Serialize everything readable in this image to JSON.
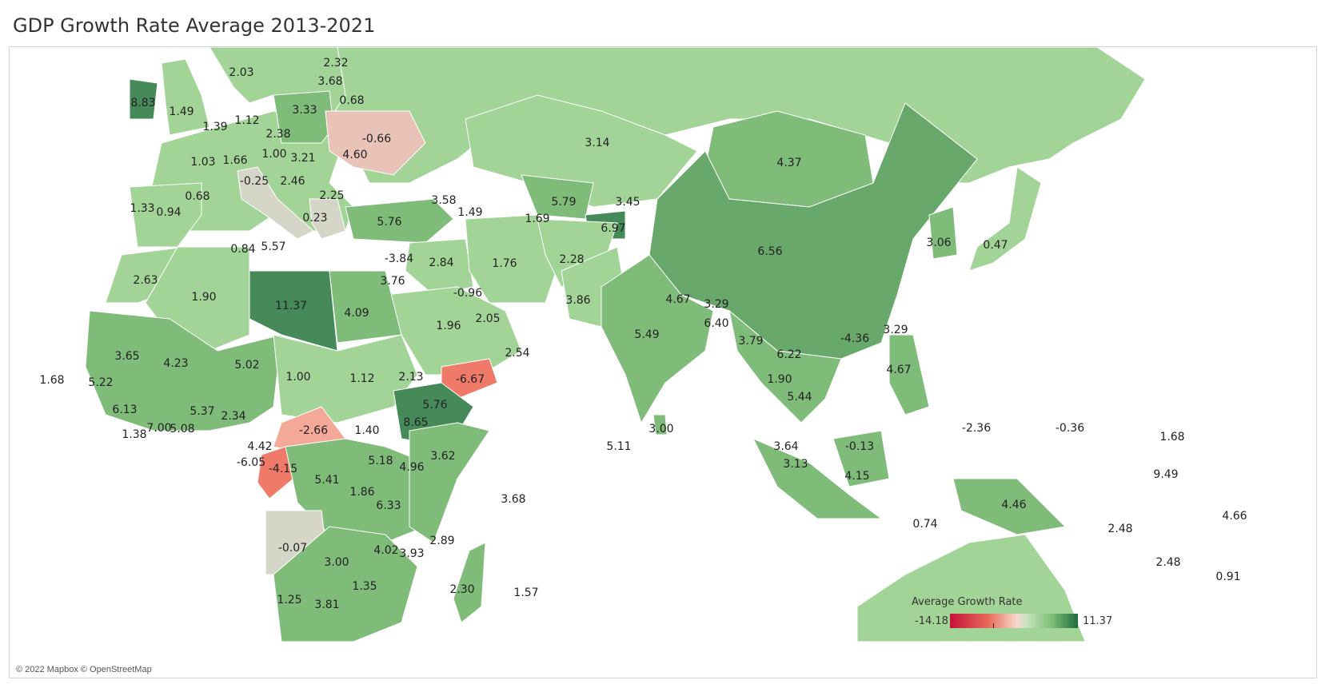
{
  "title": "GDP Growth Rate Average 2013-2021",
  "attribution": "© 2022 Mapbox © OpenStreetMap",
  "legend": {
    "title": "Average Growth Rate",
    "min": "-14.18",
    "max": "11.37"
  },
  "colors": {
    "strong_positive": "#478a5a",
    "positive": "#7fbb79",
    "mild_positive": "#a3d497",
    "neutral": "#d6d6c8",
    "mild_negative": "#eac3b8",
    "negative": "#f07a6a",
    "water": "#ffffff"
  },
  "map_labels": {
    "ireland": "8.83",
    "uk": "1.49",
    "norway": "2.03",
    "finland": "2.32",
    "baltic": "3.68",
    "belarus": "0.68",
    "denmark": "1.12",
    "netherlands": "1.39",
    "poland": "3.33",
    "germany": "2.38",
    "ukraine": "-0.66",
    "france": "1.03",
    "switzerland": "1.66",
    "czechia": "1.00",
    "slovakia": "3.21",
    "romania": "4.60",
    "hungary": "2.46",
    "italy": "-0.25",
    "bulgaria": "2.25",
    "spain_n": "0.68",
    "portugal": "1.33",
    "spain": "0.94",
    "greece": "0.23",
    "malta": "5.57",
    "tunisia": "0.84",
    "turkey": "5.76",
    "georgia": "3.58",
    "armenia": "1.49",
    "kazakhstan": "3.14",
    "uzbekistan": "5.79",
    "kyrgyzstan": "3.45",
    "turkmenistan": "1.69",
    "tajikistan": "6.97",
    "mongolia": "4.37",
    "china": "6.56",
    "korea": "3.06",
    "japan": "0.47",
    "lebanon": "-3.84",
    "iraq": "2.84",
    "iran": "1.76",
    "afghanistan": "2.28",
    "pakistan": "3.86",
    "morocco": "2.63",
    "algeria": "1.90",
    "libya": "11.37",
    "egypt": "4.09",
    "israel": "3.76",
    "kuwait": "-0.96",
    "saudi": "1.96",
    "uae": "2.05",
    "oman": "2.54",
    "nepal": "4.67",
    "bhutan": "3.29",
    "bangladesh": "6.40",
    "india": "5.49",
    "myanmar": "3.79",
    "laos": "6.22",
    "hongkong": "-4.36",
    "taiwan": "3.29",
    "yemen": "-6.67",
    "sudan": "1.12",
    "chad": "1.00",
    "niger": "5.02",
    "mali": "4.23",
    "mauritania": "3.65",
    "capeverde": "1.68",
    "senegal": "5.22",
    "guinea": "6.13",
    "sierraleone": "1.38",
    "ivorycoast": "7.00",
    "ghana": "5.08",
    "benin": "5.37",
    "nigeria": "2.34",
    "eritrea": "2.13",
    "djibouti": "5.76",
    "ethiopia": "8.65",
    "thailand": "1.90",
    "cambodia": "5.44",
    "philippines": "4.67",
    "car": "-2.66",
    "southsudan": "1.40",
    "cameroon": "4.42",
    "eqguinea": "-6.05",
    "congo": "-4.15",
    "drc": "5.41",
    "uganda": "5.18",
    "kenya": "4.96",
    "somalia": "3.62",
    "rwanda": "1.86",
    "tanzania": "6.33",
    "maldives": "5.11",
    "srilanka": "3.00",
    "malaysia": "3.64",
    "brunei": "-0.13",
    "singapore": "3.13",
    "indonesia": "4.15",
    "palau": "-2.36",
    "micronesia": "-0.36",
    "marshall": "1.68",
    "nauru": "9.49",
    "png": "4.46",
    "timor": "0.74",
    "solomon": "2.48",
    "vanuatu": "2.48",
    "fiji": "0.91",
    "tuvalu": "4.66",
    "seychelles": "3.68",
    "angola": "-0.07",
    "zambia": "3.00",
    "malawi": "4.02",
    "mozambique_n": "3.93",
    "comoros": "2.89",
    "madagascar": "2.30",
    "mauritius": "1.57",
    "namibia": "1.25",
    "zimbabwe": "1.35",
    "botswana": "3.81"
  }
}
